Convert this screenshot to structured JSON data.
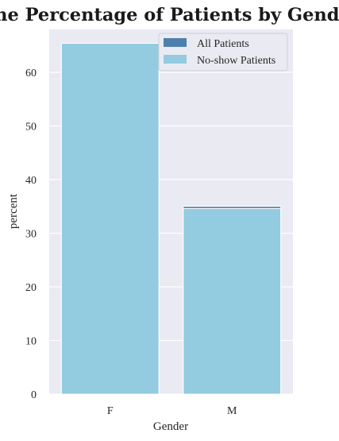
{
  "chart_data": {
    "type": "bar",
    "title": "The Percentage of Patients by Gender",
    "xlabel": "Gender",
    "ylabel": "percent",
    "categories": [
      "F",
      "M"
    ],
    "ylim": [
      0,
      68
    ],
    "yticks": [
      0,
      10,
      20,
      30,
      40,
      50,
      60
    ],
    "grid": true,
    "legend_position": "top-right",
    "series": [
      {
        "name": "All Patients",
        "color": "#4f7fac",
        "values": [
          65.0,
          35.0
        ]
      },
      {
        "name": "No-show Patients",
        "color": "#93cbe0",
        "values": [
          65.4,
          34.6
        ]
      }
    ],
    "colors": {
      "plot_background": "#eaeaf2",
      "grid": "#ffffff"
    }
  }
}
